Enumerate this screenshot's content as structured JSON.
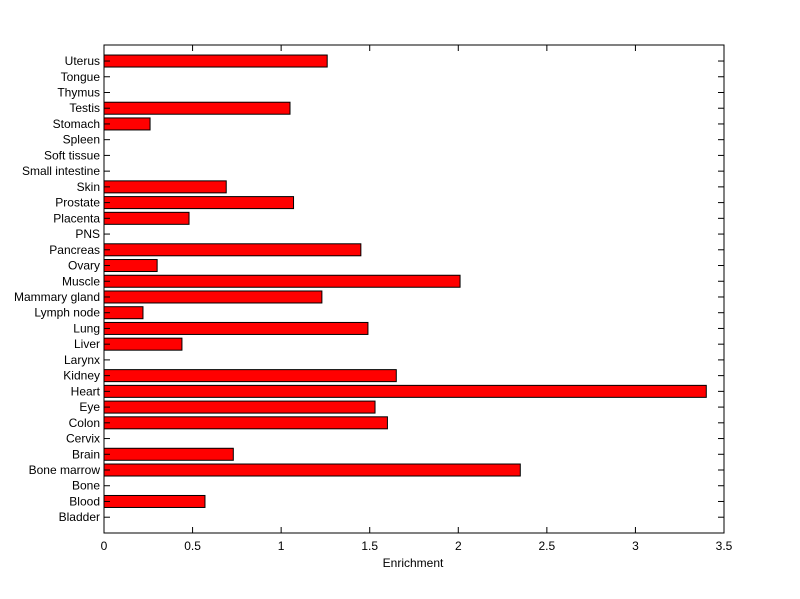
{
  "chart_data": {
    "type": "bar",
    "orientation": "horizontal",
    "categories": [
      "Bladder",
      "Blood",
      "Bone",
      "Bone marrow",
      "Brain",
      "Cervix",
      "Colon",
      "Eye",
      "Heart",
      "Kidney",
      "Larynx",
      "Liver",
      "Lung",
      "Lymph node",
      "Mammary gland",
      "Muscle",
      "Ovary",
      "Pancreas",
      "PNS",
      "Placenta",
      "Prostate",
      "Skin",
      "Small intestine",
      "Soft tissue",
      "Spleen",
      "Stomach",
      "Testis",
      "Thymus",
      "Tongue",
      "Uterus"
    ],
    "values": [
      0,
      0.57,
      0,
      2.35,
      0.73,
      0,
      1.6,
      1.53,
      3.4,
      1.65,
      0,
      0.44,
      1.49,
      0.22,
      1.23,
      2.01,
      0.3,
      1.45,
      0,
      0.48,
      1.07,
      0.69,
      0,
      0,
      0,
      0.26,
      1.05,
      0,
      0,
      1.26
    ],
    "xlabel": "Enrichment",
    "ylabel": "",
    "title": "",
    "xlim": [
      0,
      3.5
    ],
    "xticks": [
      "0",
      "0.5",
      "1",
      "1.5",
      "2",
      "2.5",
      "3",
      "3.5"
    ],
    "grid": false,
    "bar_color": "#ff0000",
    "edge_color": "#000000"
  }
}
